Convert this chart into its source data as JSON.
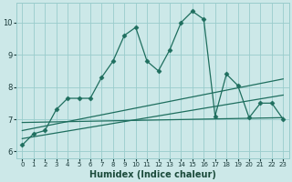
{
  "xlabel": "Humidex (Indice chaleur)",
  "bg_color": "#cce8e8",
  "grid_color": "#99cccc",
  "line_color": "#1e6e5e",
  "xlim": [
    -0.5,
    23.5
  ],
  "ylim": [
    5.8,
    10.6
  ],
  "xticks": [
    0,
    1,
    2,
    3,
    4,
    5,
    6,
    7,
    8,
    9,
    10,
    11,
    12,
    13,
    14,
    15,
    16,
    17,
    18,
    19,
    20,
    21,
    22,
    23
  ],
  "yticks": [
    6,
    7,
    8,
    9,
    10
  ],
  "line1_x": [
    0,
    1,
    2,
    3,
    4,
    5,
    6,
    7,
    8,
    9,
    10,
    11,
    12,
    13,
    14,
    15,
    16,
    17,
    18,
    19,
    20,
    21,
    22,
    23
  ],
  "line1_y": [
    6.2,
    6.55,
    6.65,
    7.3,
    7.65,
    7.65,
    7.65,
    8.3,
    8.8,
    9.6,
    9.85,
    8.8,
    8.5,
    9.15,
    10.0,
    10.35,
    10.1,
    7.1,
    8.4,
    8.05,
    7.05,
    7.5,
    7.5,
    7.0
  ],
  "line2_x": [
    0,
    23
  ],
  "line2_y": [
    6.9,
    7.05
  ],
  "line3_x": [
    0,
    23
  ],
  "line3_y": [
    6.65,
    8.25
  ],
  "line4_x": [
    0,
    23
  ],
  "line4_y": [
    6.4,
    7.75
  ]
}
